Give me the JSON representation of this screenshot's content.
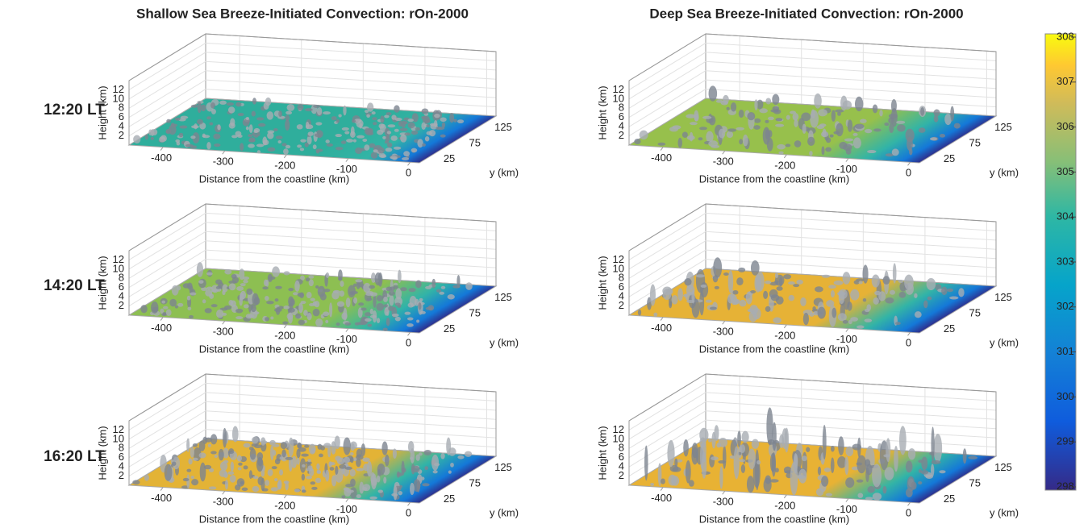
{
  "columns": [
    {
      "title": "Shallow Sea Breeze-Initiated Convection: rOn-2000"
    },
    {
      "title": "Deep Sea Breeze-Initiated Convection: rOn-2000"
    }
  ],
  "rows": [
    "12:20 LT",
    "14:20 LT",
    "16:20 LT"
  ],
  "axes": {
    "z_label": "Height (km)",
    "x_label": "Distance from the coastline (km)",
    "y_label": "y (km)",
    "z_ticks": [
      2,
      4,
      6,
      8,
      10,
      12
    ],
    "x_ticks": [
      -400,
      -300,
      -200,
      -100,
      0
    ],
    "y_ticks": [
      25,
      75,
      125
    ]
  },
  "colorbar": {
    "ticks": [
      308,
      307,
      306,
      305,
      304,
      303,
      302,
      301,
      300,
      299,
      298
    ]
  }
}
